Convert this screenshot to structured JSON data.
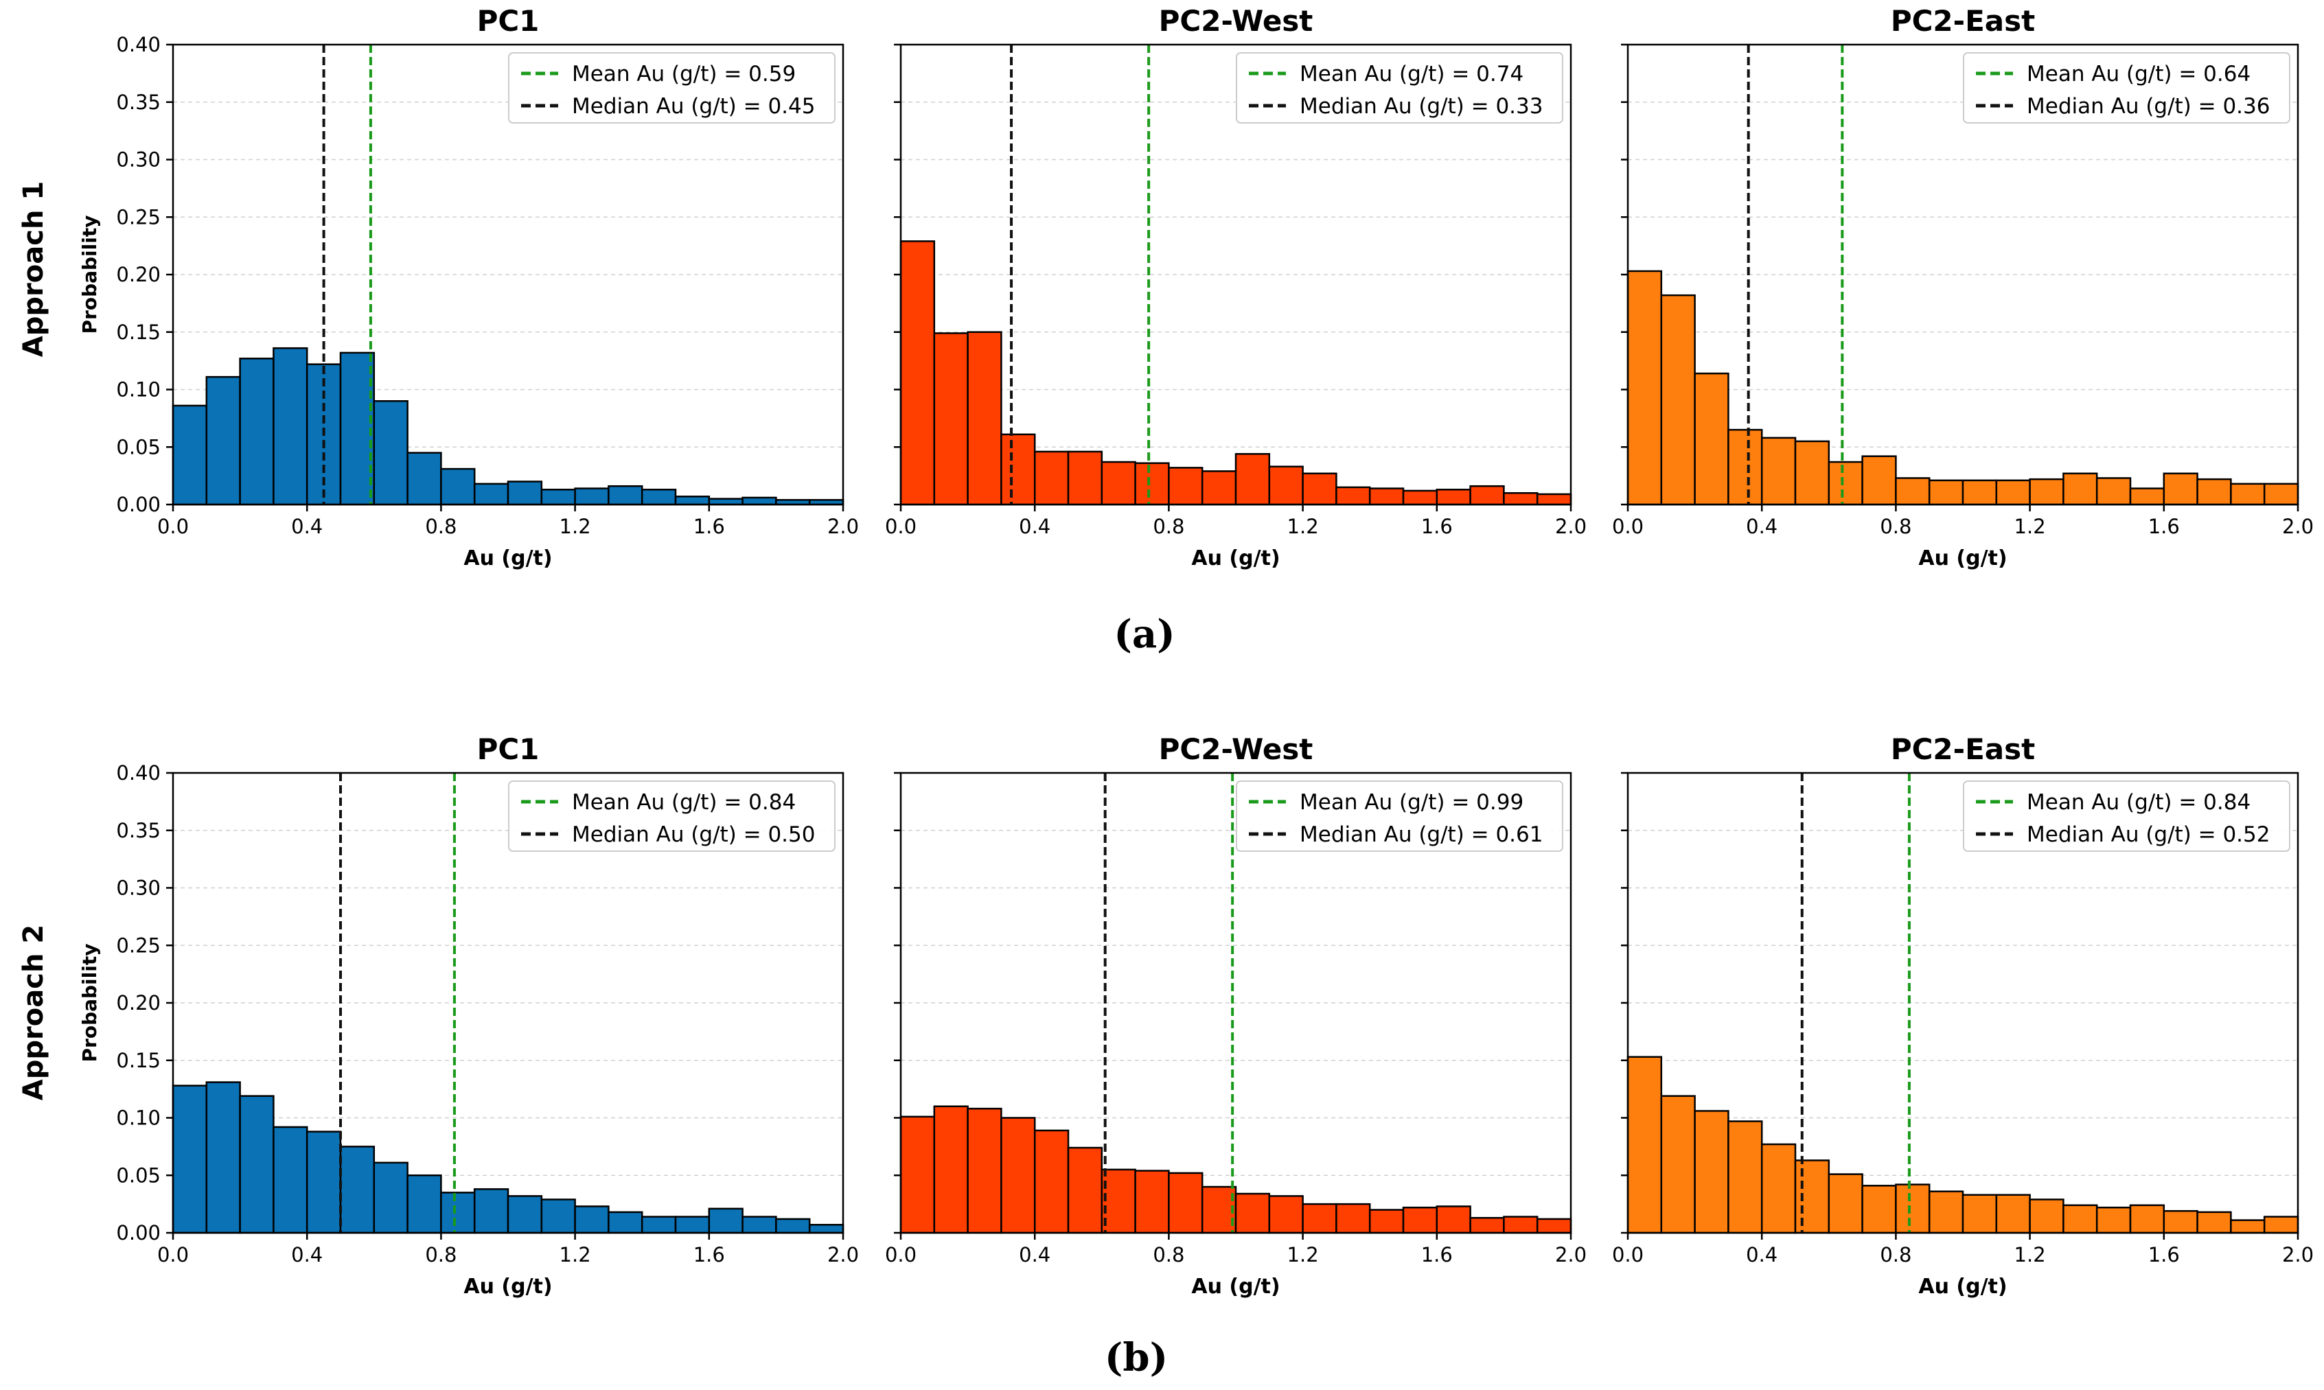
{
  "colors": {
    "pc1": "#0a72b5",
    "pc2_west": "#ff3f00",
    "pc2_east": "#ff7f0e",
    "mean_line": "#1a9a1a",
    "median_line": "#111111",
    "grid": "#d0d0d0"
  },
  "panel_labels": [
    "(a)",
    "(b)"
  ],
  "row_labels": [
    "Approach 1",
    "Approach 2"
  ],
  "chart_data": [
    {
      "type": "bar",
      "row": 0,
      "col": 0,
      "series_color": "pc1",
      "title": "PC1",
      "xlabel": "Au (g/t)",
      "ylabel": "Probability",
      "xlim": [
        0,
        2.0
      ],
      "ylim": [
        0,
        0.4
      ],
      "bin_width": 0.1,
      "xticks": [
        "0.0",
        "0.4",
        "0.8",
        "1.2",
        "1.6",
        "2.0"
      ],
      "yticks": [
        "0.00",
        "0.05",
        "0.10",
        "0.15",
        "0.20",
        "0.25",
        "0.30",
        "0.35",
        "0.40"
      ],
      "values": [
        0.086,
        0.111,
        0.127,
        0.136,
        0.122,
        0.132,
        0.09,
        0.045,
        0.031,
        0.018,
        0.02,
        0.013,
        0.014,
        0.016,
        0.013,
        0.007,
        0.005,
        0.006,
        0.004,
        0.004
      ],
      "mean": 0.59,
      "median": 0.45,
      "legend": [
        "Mean Au (g/t) = 0.59",
        "Median Au (g/t) = 0.45"
      ]
    },
    {
      "type": "bar",
      "row": 0,
      "col": 1,
      "series_color": "pc2_west",
      "title": "PC2-West",
      "xlabel": "Au (g/t)",
      "ylabel": "",
      "xlim": [
        0,
        2.0
      ],
      "ylim": [
        0,
        0.4
      ],
      "bin_width": 0.1,
      "xticks": [
        "0.0",
        "0.4",
        "0.8",
        "1.2",
        "1.6",
        "2.0"
      ],
      "yticks": [],
      "values": [
        0.229,
        0.149,
        0.15,
        0.061,
        0.046,
        0.046,
        0.037,
        0.036,
        0.032,
        0.029,
        0.044,
        0.033,
        0.027,
        0.015,
        0.014,
        0.012,
        0.013,
        0.016,
        0.01,
        0.009
      ],
      "mean": 0.74,
      "median": 0.33,
      "legend": [
        "Mean Au (g/t) = 0.74",
        "Median Au (g/t) = 0.33"
      ]
    },
    {
      "type": "bar",
      "row": 0,
      "col": 2,
      "series_color": "pc2_east",
      "title": "PC2-East",
      "xlabel": "Au (g/t)",
      "ylabel": "",
      "xlim": [
        0,
        2.0
      ],
      "ylim": [
        0,
        0.4
      ],
      "bin_width": 0.1,
      "xticks": [
        "0.0",
        "0.4",
        "0.8",
        "1.2",
        "1.6",
        "2.0"
      ],
      "yticks": [],
      "values": [
        0.203,
        0.182,
        0.114,
        0.065,
        0.058,
        0.055,
        0.037,
        0.042,
        0.023,
        0.021,
        0.021,
        0.021,
        0.022,
        0.027,
        0.023,
        0.014,
        0.027,
        0.022,
        0.018,
        0.018
      ],
      "mean": 0.64,
      "median": 0.36,
      "legend": [
        "Mean Au (g/t) = 0.64",
        "Median Au (g/t) = 0.36"
      ]
    },
    {
      "type": "bar",
      "row": 1,
      "col": 0,
      "series_color": "pc1",
      "title": "PC1",
      "xlabel": "Au (g/t)",
      "ylabel": "Probability",
      "xlim": [
        0,
        2.0
      ],
      "ylim": [
        0,
        0.4
      ],
      "bin_width": 0.1,
      "xticks": [
        "0.0",
        "0.4",
        "0.8",
        "1.2",
        "1.6",
        "2.0"
      ],
      "yticks": [
        "0.00",
        "0.05",
        "0.10",
        "0.15",
        "0.20",
        "0.25",
        "0.30",
        "0.35",
        "0.40"
      ],
      "values": [
        0.128,
        0.131,
        0.119,
        0.092,
        0.088,
        0.075,
        0.061,
        0.05,
        0.035,
        0.038,
        0.032,
        0.029,
        0.023,
        0.018,
        0.014,
        0.014,
        0.021,
        0.014,
        0.012,
        0.007
      ],
      "mean": 0.84,
      "median": 0.5,
      "legend": [
        "Mean Au (g/t) = 0.84",
        "Median Au (g/t) = 0.50"
      ]
    },
    {
      "type": "bar",
      "row": 1,
      "col": 1,
      "series_color": "pc2_west",
      "title": "PC2-West",
      "xlabel": "Au (g/t)",
      "ylabel": "",
      "xlim": [
        0,
        2.0
      ],
      "ylim": [
        0,
        0.4
      ],
      "bin_width": 0.1,
      "xticks": [
        "0.0",
        "0.4",
        "0.8",
        "1.2",
        "1.6",
        "2.0"
      ],
      "yticks": [],
      "values": [
        0.101,
        0.11,
        0.108,
        0.1,
        0.089,
        0.074,
        0.055,
        0.054,
        0.052,
        0.04,
        0.034,
        0.032,
        0.025,
        0.025,
        0.02,
        0.022,
        0.023,
        0.013,
        0.014,
        0.012
      ],
      "mean": 0.99,
      "median": 0.61,
      "legend": [
        "Mean Au (g/t) = 0.99",
        "Median Au (g/t) = 0.61"
      ]
    },
    {
      "type": "bar",
      "row": 1,
      "col": 2,
      "series_color": "pc2_east",
      "title": "PC2-East",
      "xlabel": "Au (g/t)",
      "ylabel": "",
      "xlim": [
        0,
        2.0
      ],
      "ylim": [
        0,
        0.4
      ],
      "bin_width": 0.1,
      "xticks": [
        "0.0",
        "0.4",
        "0.8",
        "1.2",
        "1.6",
        "2.0"
      ],
      "yticks": [],
      "values": [
        0.153,
        0.119,
        0.106,
        0.097,
        0.077,
        0.063,
        0.051,
        0.041,
        0.042,
        0.036,
        0.033,
        0.033,
        0.029,
        0.024,
        0.022,
        0.024,
        0.019,
        0.018,
        0.011,
        0.014
      ],
      "mean": 0.84,
      "median": 0.52,
      "legend": [
        "Mean Au (g/t) = 0.84",
        "Median Au (g/t) = 0.52"
      ]
    }
  ]
}
